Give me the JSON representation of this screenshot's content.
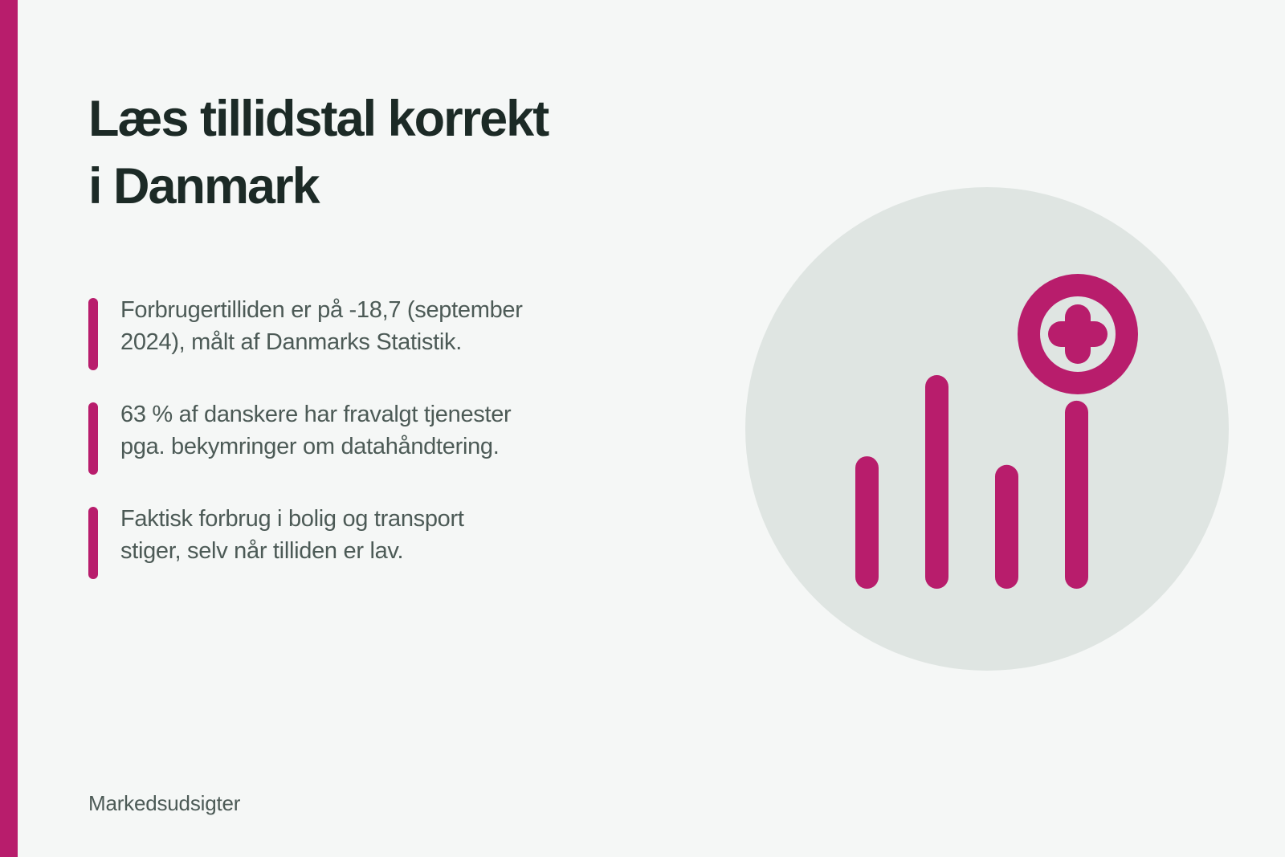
{
  "title": {
    "line1": "Læs tillidstal korrekt",
    "line2": "i Danmark"
  },
  "bullets": [
    {
      "line1": "Forbrugertilliden er på -18,7 (september",
      "line2": "2024), målt af Danmarks Statistik."
    },
    {
      "line1": "63 % af danskere har fravalgt tjenester",
      "line2": "pga. bekymringer om datahåndtering."
    },
    {
      "line1": "Faktisk forbrug i bolig og transport",
      "line2": "stiger, selv når tilliden er lav."
    }
  ],
  "footer": "Markedsudsigter",
  "illustration": {
    "icon": "bar-chart-plus-icon",
    "bar_levels": [
      0.62,
      1.0,
      0.58,
      0.88
    ]
  },
  "colors": {
    "accent": "#b81d6c",
    "background": "#f5f7f6",
    "circle": "#dfe5e2",
    "heading": "#1c2a26",
    "body_text": "#4c5a56"
  }
}
